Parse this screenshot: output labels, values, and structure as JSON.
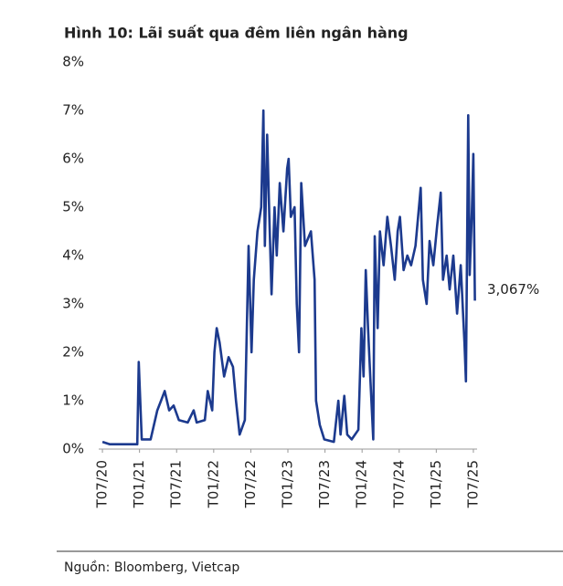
{
  "chart_data": {
    "type": "line",
    "title": "Hình 10: Lãi suất qua đêm liên ngân hàng",
    "source": "Nguồn: Bloomberg, Vietcap",
    "annotation": "3,067%",
    "x": [
      2020.5,
      2020.6,
      2020.78,
      2020.97,
      2020.99,
      2021.03,
      2021.15,
      2021.24,
      2021.29,
      2021.34,
      2021.4,
      2021.46,
      2021.53,
      2021.65,
      2021.73,
      2021.77,
      2021.88,
      2021.92,
      2021.98,
      2022.01,
      2022.04,
      2022.08,
      2022.14,
      2022.2,
      2022.26,
      2022.3,
      2022.35,
      2022.42,
      2022.47,
      2022.51,
      2022.54,
      2022.59,
      2022.64,
      2022.67,
      2022.69,
      2022.72,
      2022.75,
      2022.78,
      2022.82,
      2022.85,
      2022.89,
      2022.94,
      2022.99,
      2023.01,
      2023.04,
      2023.09,
      2023.12,
      2023.15,
      2023.18,
      2023.23,
      2023.31,
      2023.36,
      2023.38,
      2023.43,
      2023.49,
      2023.62,
      2023.68,
      2023.71,
      2023.76,
      2023.8,
      2023.86,
      2023.95,
      2023.99,
      2024.02,
      2024.05,
      2024.08,
      2024.11,
      2024.15,
      2024.17,
      2024.21,
      2024.24,
      2024.29,
      2024.34,
      2024.39,
      2024.44,
      2024.48,
      2024.51,
      2024.56,
      2024.61,
      2024.66,
      2024.72,
      2024.79,
      2024.82,
      2024.87,
      2024.91,
      2024.96,
      2025.01,
      2025.06,
      2025.09,
      2025.14,
      2025.18,
      2025.23,
      2025.28,
      2025.33,
      2025.38,
      2025.4,
      2025.43,
      2025.45,
      2025.48,
      2025.5,
      2025.52
    ],
    "series": [
      {
        "color": "#1c3a8e",
        "values": [
          0.15,
          0.1,
          0.1,
          0.1,
          1.8,
          0.2,
          0.2,
          0.8,
          1.0,
          1.2,
          0.8,
          0.9,
          0.6,
          0.55,
          0.8,
          0.55,
          0.6,
          1.2,
          0.8,
          2.0,
          2.5,
          2.2,
          1.5,
          1.9,
          1.7,
          1.0,
          0.3,
          0.6,
          4.2,
          2.0,
          3.5,
          4.5,
          5.0,
          7.0,
          4.2,
          6.5,
          4.8,
          3.2,
          5.0,
          4.0,
          5.5,
          4.5,
          5.8,
          6.0,
          4.8,
          5.0,
          3.0,
          2.0,
          5.5,
          4.2,
          4.5,
          3.5,
          1.0,
          0.5,
          0.2,
          0.15,
          1.0,
          0.3,
          1.1,
          0.3,
          0.2,
          0.4,
          2.5,
          1.5,
          3.7,
          2.5,
          1.5,
          0.2,
          4.4,
          2.5,
          4.5,
          3.8,
          4.8,
          4.2,
          3.5,
          4.5,
          4.8,
          3.7,
          4.0,
          3.8,
          4.2,
          5.4,
          3.5,
          3.0,
          4.3,
          3.8,
          4.6,
          5.3,
          3.5,
          4.0,
          3.3,
          4.0,
          2.8,
          3.8,
          2.2,
          1.4,
          6.9,
          3.6,
          4.9,
          6.1,
          3.067
        ]
      }
    ],
    "xlim": [
      2020.45,
      2025.55
    ],
    "xticks": [
      {
        "value": 2020.5,
        "label": "T07/20"
      },
      {
        "value": 2021.0,
        "label": "T01/21"
      },
      {
        "value": 2021.5,
        "label": "T07/21"
      },
      {
        "value": 2022.0,
        "label": "T01/22"
      },
      {
        "value": 2022.5,
        "label": "T07/22"
      },
      {
        "value": 2023.0,
        "label": "T01/23"
      },
      {
        "value": 2023.5,
        "label": "T07/23"
      },
      {
        "value": 2024.0,
        "label": "T01/24"
      },
      {
        "value": 2024.5,
        "label": "T07/24"
      },
      {
        "value": 2025.0,
        "label": "T01/25"
      },
      {
        "value": 2025.5,
        "label": "T07/25"
      }
    ],
    "ylim": [
      0,
      8
    ],
    "yticks": [
      {
        "value": 0,
        "label": "0%"
      },
      {
        "value": 1,
        "label": "1%"
      },
      {
        "value": 2,
        "label": "2%"
      },
      {
        "value": 3,
        "label": "3%"
      },
      {
        "value": 4,
        "label": "4%"
      },
      {
        "value": 5,
        "label": "5%"
      },
      {
        "value": 6,
        "label": "6%"
      },
      {
        "value": 7,
        "label": "7%"
      },
      {
        "value": 8,
        "label": "8%"
      }
    ],
    "grid": false
  }
}
